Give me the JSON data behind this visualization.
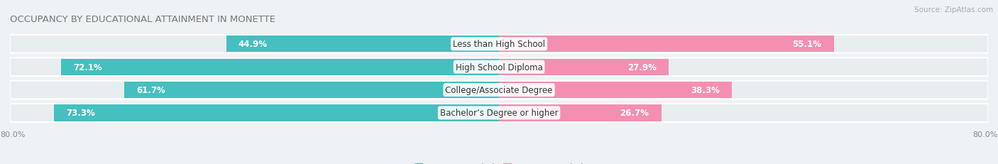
{
  "title": "OCCUPANCY BY EDUCATIONAL ATTAINMENT IN MONETTE",
  "source": "Source: ZipAtlas.com",
  "categories": [
    "Less than High School",
    "High School Diploma",
    "College/Associate Degree",
    "Bachelor’s Degree or higher"
  ],
  "owner_values": [
    44.9,
    72.1,
    61.7,
    73.3
  ],
  "renter_values": [
    55.1,
    27.9,
    38.3,
    26.7
  ],
  "owner_color": "#45bfbf",
  "renter_color": "#f48fb1",
  "bar_height": 0.72,
  "x_max": 80.0,
  "background_color": "#eef2f4",
  "bar_bg_color": "#dde5e8",
  "row_bg_color": "#e8eef0",
  "title_fontsize": 9.5,
  "source_fontsize": 7.5,
  "label_fontsize": 8.5,
  "category_fontsize": 8.5,
  "legend_fontsize": 8.5,
  "owner_label_threshold": 20,
  "renter_label_threshold": 20
}
